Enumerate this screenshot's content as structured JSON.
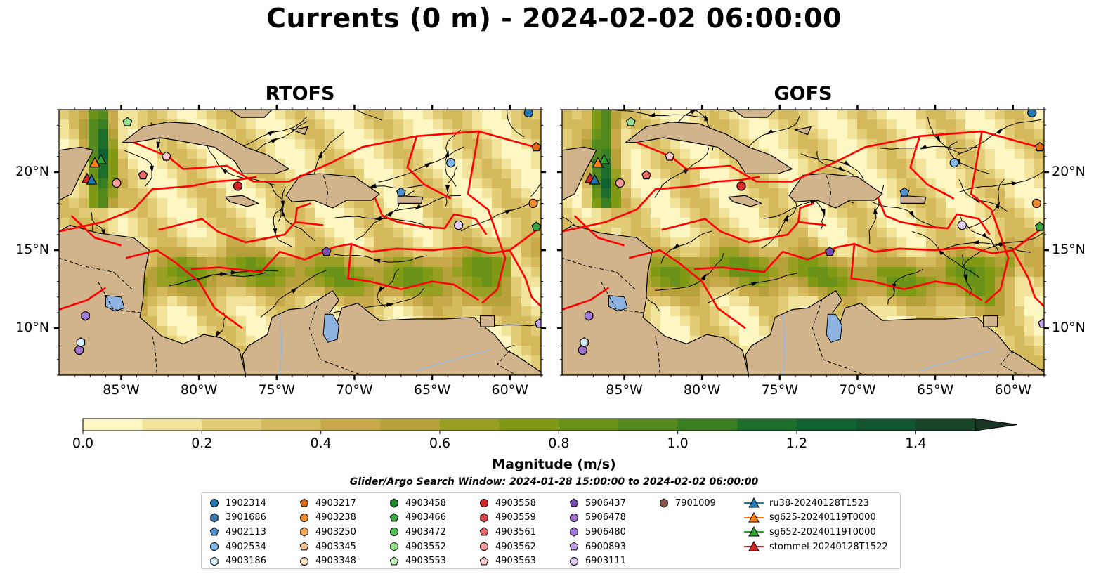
{
  "title": "Currents (0 m) - 2024-02-02 06:00:00",
  "panels": {
    "left": {
      "title": "RTOFS"
    },
    "right": {
      "title": "GOFS"
    }
  },
  "axes": {
    "lon_ticks": [
      "85°W",
      "80°W",
      "75°W",
      "70°W",
      "65°W",
      "60°W"
    ],
    "lat_ticks": [
      "20°N",
      "15°N",
      "10°N"
    ],
    "lon_range": [
      -89,
      -58
    ],
    "lat_range": [
      7,
      24
    ]
  },
  "map_colors": {
    "land": "#d2b48c",
    "boundary": "#ff0000",
    "lake": "#8fb3e0",
    "streamline": "#000000"
  },
  "colorbar": {
    "label": "Magnitude (m/s)",
    "ticks": [
      "0.0",
      "0.2",
      "0.4",
      "0.6",
      "0.8",
      "1.0",
      "1.2",
      "1.4"
    ],
    "min": 0.0,
    "max": 1.5,
    "step": 0.1,
    "extend": "max",
    "colors": [
      "#fef6c3",
      "#f2e39a",
      "#e2cd76",
      "#d4ba5d",
      "#c9aa4a",
      "#b6a13a",
      "#98a023",
      "#809a16",
      "#6a9218",
      "#54891e",
      "#3a7f22",
      "#1f6f2c",
      "#106232",
      "#12552f",
      "#17452a",
      "#1a3523"
    ]
  },
  "search_window": "Glider/Argo Search Window: 2024-01-28 15:00:00 to 2024-02-02 06:00:00",
  "legend": [
    {
      "label": "1902314",
      "marker": "circle",
      "color": "#1f77b4"
    },
    {
      "label": "3901686",
      "marker": "hexagon",
      "color": "#3a78b0"
    },
    {
      "label": "4902113",
      "marker": "pentagon",
      "color": "#4f8fcd"
    },
    {
      "label": "4902534",
      "marker": "circle",
      "color": "#7fb8e6"
    },
    {
      "label": "4903186",
      "marker": "hexagon",
      "color": "#d7ecfa"
    },
    {
      "label": "4903217",
      "marker": "pentagon",
      "color": "#e06a0f"
    },
    {
      "label": "4903238",
      "marker": "circle",
      "color": "#f08a2e"
    },
    {
      "label": "4903250",
      "marker": "hexagon",
      "color": "#f8a656"
    },
    {
      "label": "4903345",
      "marker": "pentagon",
      "color": "#fdc79a"
    },
    {
      "label": "4903348",
      "marker": "circle",
      "color": "#fee1c4"
    },
    {
      "label": "4903458",
      "marker": "hexagon",
      "color": "#1d8a2a"
    },
    {
      "label": "4903466",
      "marker": "pentagon",
      "color": "#34a53f"
    },
    {
      "label": "4903472",
      "marker": "circle",
      "color": "#56c05b"
    },
    {
      "label": "4903552",
      "marker": "hexagon",
      "color": "#93dd8c"
    },
    {
      "label": "4903553",
      "marker": "pentagon",
      "color": "#c8f2c1"
    },
    {
      "label": "4903558",
      "marker": "circle",
      "color": "#d62728"
    },
    {
      "label": "4903559",
      "marker": "hexagon",
      "color": "#d9434a"
    },
    {
      "label": "4903561",
      "marker": "pentagon",
      "color": "#e86a6d"
    },
    {
      "label": "4903562",
      "marker": "circle",
      "color": "#f29a9a"
    },
    {
      "label": "4903563",
      "marker": "pentagon",
      "color": "#fbc9c9"
    },
    {
      "label": "5906437",
      "marker": "pentagon",
      "color": "#7a4db3"
    },
    {
      "label": "5906478",
      "marker": "circle",
      "color": "#9f71cc"
    },
    {
      "label": "5906480",
      "marker": "hexagon",
      "color": "#a57ad6"
    },
    {
      "label": "6900893",
      "marker": "pentagon",
      "color": "#c6a6ec"
    },
    {
      "label": "6903111",
      "marker": "circle",
      "color": "#e4cdf7"
    },
    {
      "label": "7901009",
      "marker": "hexagon",
      "color": "#8c564b"
    },
    {
      "label": "ru38-20240128T1523",
      "marker": "triangle-line",
      "color": "#1f77b4"
    },
    {
      "label": "sg625-20240119T0000",
      "marker": "triangle-line",
      "color": "#ff7f0e"
    },
    {
      "label": "sg652-20240119T0000",
      "marker": "triangle-line",
      "color": "#2ca02c"
    },
    {
      "label": "stommel-20240128T1522",
      "marker": "triangle-line",
      "color": "#d62728"
    }
  ]
}
